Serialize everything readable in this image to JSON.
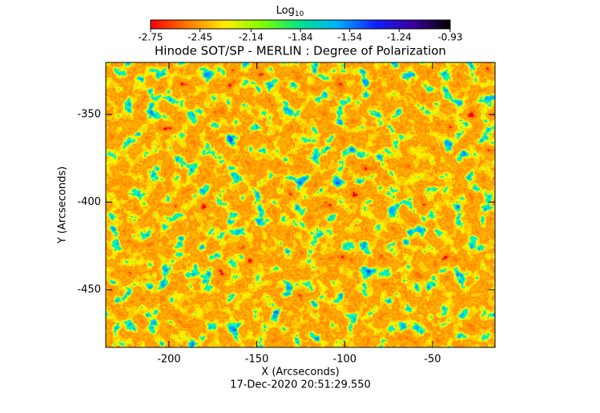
{
  "chart_data": {
    "type": "heatmap",
    "title": "Hinode SOT/SP - MERLIN : Degree of Polarization",
    "x_label": "X (Arcseconds)",
    "y_label": "Y (Arcseconds)",
    "footer": "17-Dec-2020 20:51:29.550",
    "xlim": [
      -236,
      -14.4
    ],
    "xticks": [
      -200,
      -150,
      -100,
      -50
    ],
    "ylim": [
      -482.9,
      -320.3
    ],
    "yticks": [
      -450,
      -400,
      -350
    ],
    "colorbar": {
      "label": "Log",
      "label_subscript": "10",
      "lim": [
        -2.75,
        -0.93
      ],
      "ticks": [
        -2.75,
        -2.45,
        -2.14,
        -1.84,
        -1.54,
        -1.24,
        -0.93
      ],
      "colors": [
        "#ff0000",
        "#ff7a00",
        "#ffee00",
        "#7cff00",
        "#00e38c",
        "#00b0ff",
        "#1020ff",
        "#3a00a0",
        "#000000"
      ]
    }
  }
}
